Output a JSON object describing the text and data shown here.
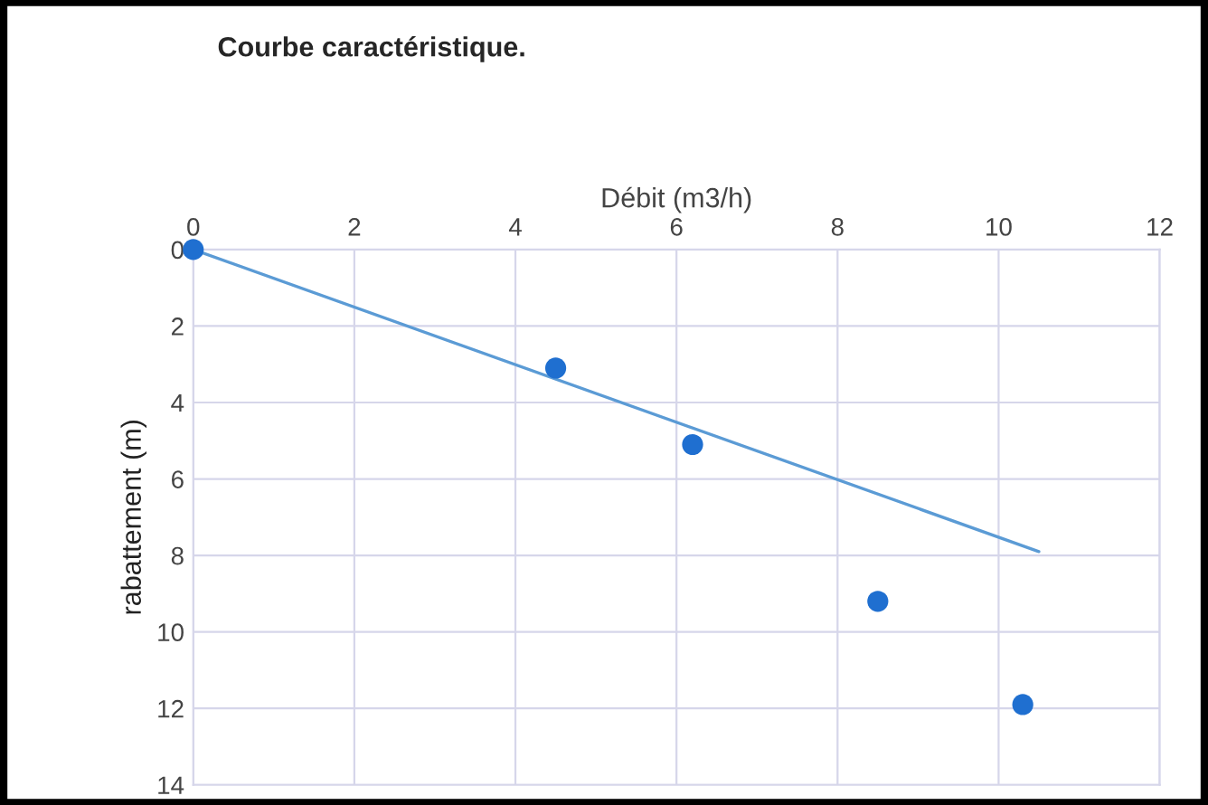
{
  "chart_data": {
    "type": "scatter",
    "title": "Courbe caractéristique.",
    "xlabel": "Débit (m3/h)",
    "ylabel": "rabattement (m)",
    "xlim": [
      0,
      12
    ],
    "xticks": [
      0,
      2,
      4,
      6,
      8,
      10,
      12
    ],
    "ylim": [
      14,
      0
    ],
    "yticks": [
      0,
      2,
      4,
      6,
      8,
      10,
      12,
      14
    ],
    "grid": true,
    "series": [
      {
        "marker": "circle",
        "color": "#1f6fd0",
        "x": [
          0,
          4.5,
          6.2,
          8.5,
          10.3
        ],
        "values": [
          0,
          3.1,
          5.1,
          9.2,
          11.9
        ]
      },
      {
        "type": "line",
        "color": "#5b9bd5",
        "x": [
          0,
          10.5
        ],
        "values": [
          0,
          7.9
        ]
      }
    ]
  }
}
